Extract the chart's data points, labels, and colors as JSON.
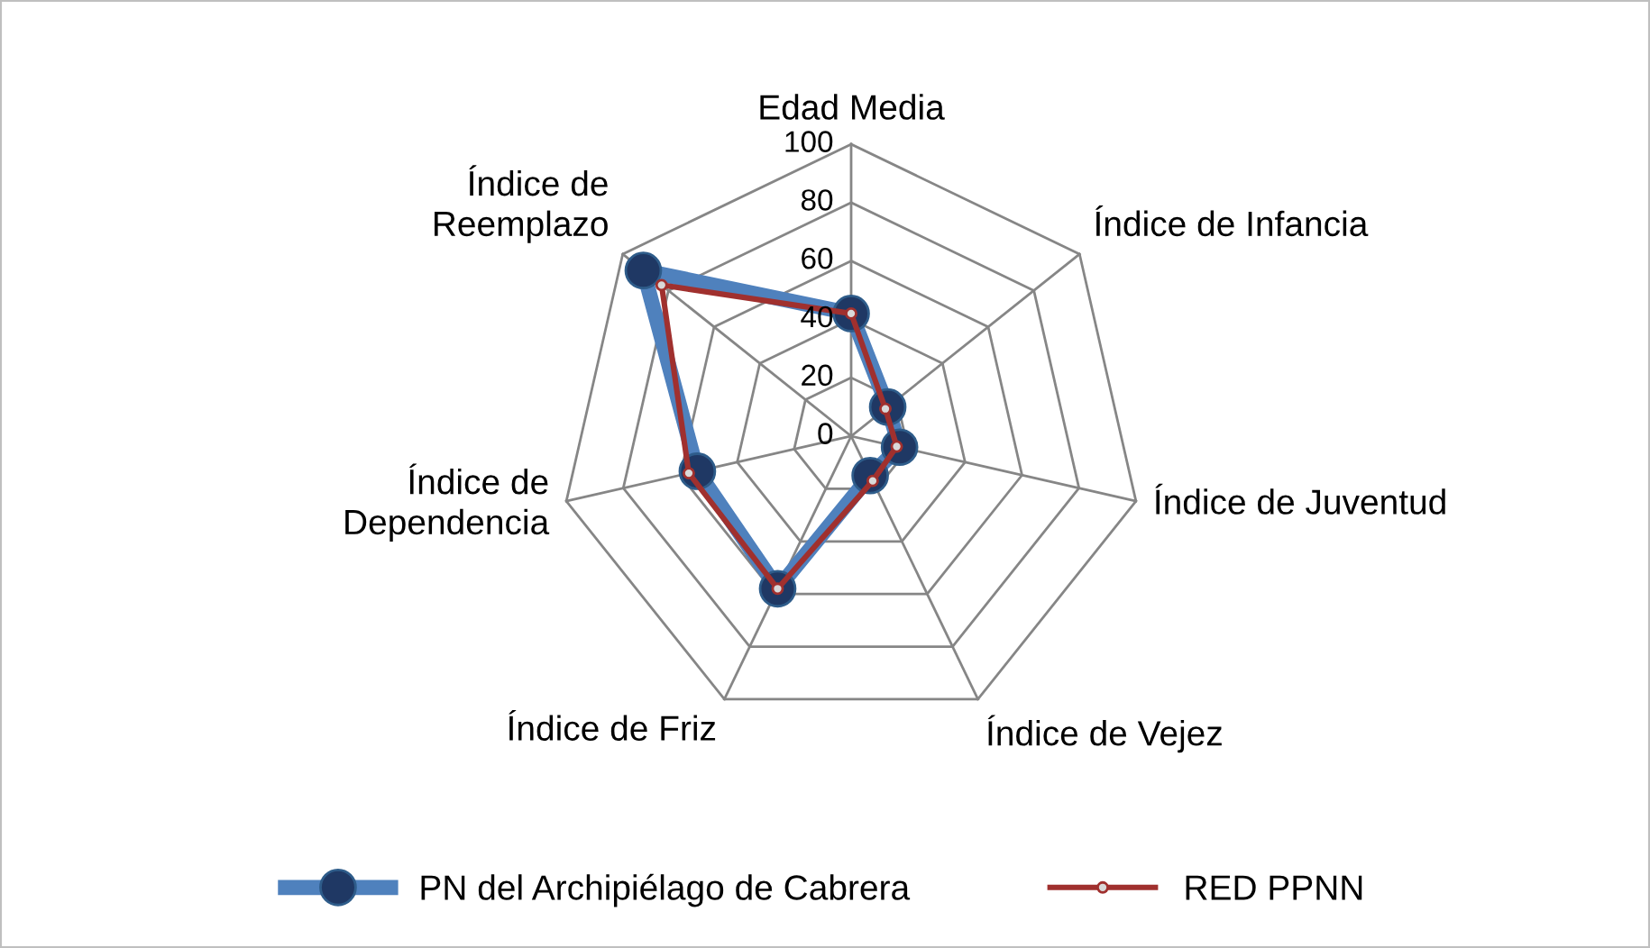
{
  "chart_data": {
    "type": "radar",
    "categories": [
      "Edad Media",
      "Índice de Infancia",
      "Índice de Juventud",
      "Índice de Vejez",
      "Índice de Friz",
      "Índice de\nDependencia",
      "Índice de\nReemplazo"
    ],
    "series": [
      {
        "name": "PN del Archipiélago de Cabrera",
        "color": "#4f81bd",
        "values": [
          42,
          16,
          17,
          15,
          58,
          54,
          91
        ]
      },
      {
        "name": "RED PPNN",
        "color": "#a0302e",
        "values": [
          42,
          15,
          16,
          17,
          58,
          57,
          83
        ]
      }
    ],
    "ylim": [
      0,
      100
    ],
    "yticks": [
      0,
      20,
      40,
      60,
      80,
      100
    ],
    "grid": true,
    "legend": "bottom",
    "marker": "circle"
  }
}
